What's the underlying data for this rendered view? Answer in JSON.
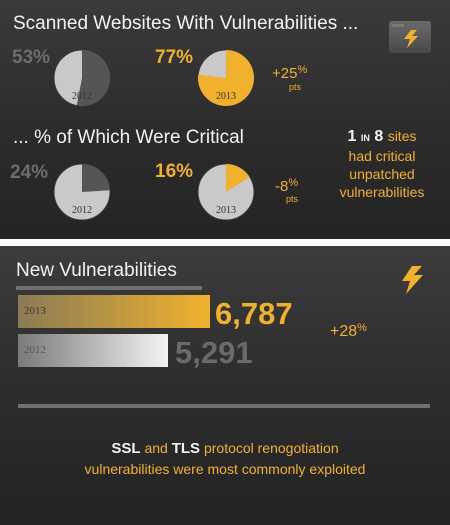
{
  "top": {
    "heading1": "Scanned Websites With Vulnerabilities ...",
    "heading2": "... % of Which Were Critical",
    "scanned": {
      "pct_2012": "53%",
      "pct_2013": "77%",
      "delta": "+25",
      "delta_unit": "%",
      "delta_sub": "pts"
    },
    "critical": {
      "pct_2012": "24%",
      "pct_2013": "16%",
      "delta": "-8",
      "delta_unit": "%",
      "delta_sub": "pts"
    },
    "year_2012": "2012",
    "year_2013": "2013",
    "ratio": {
      "one": "1",
      "in": "IN",
      "eight": "8",
      "sites": "sites",
      "line2": "had critical",
      "line3": "unpatched",
      "line4": "vulnerabilities"
    },
    "logo_icon": "bolt-icon"
  },
  "bottom": {
    "heading": "New Vulnerabilities",
    "growth": "+28",
    "growth_unit": "%",
    "note_ssl": "SSL",
    "note_and": "and",
    "note_tls": "TLS",
    "note_rest1": "protocol renogotiation",
    "note_line2": "vulnerabilities were most commonly exploited",
    "logo_icon": "bolt-icon"
  },
  "colors": {
    "gold": "#f2b12d",
    "gray": "#6d6d6d",
    "pie_fill": "#c9c9c9",
    "pie_dark": "#555555"
  },
  "chart_data": [
    {
      "type": "pie",
      "title": "Scanned Websites With Vulnerabilities ...",
      "series": [
        {
          "name": "2012",
          "values": [
            53
          ]
        },
        {
          "name": "2013",
          "values": [
            77
          ]
        }
      ]
    },
    {
      "type": "pie",
      "title": "... % of Which Were Critical",
      "series": [
        {
          "name": "2012",
          "values": [
            24
          ]
        },
        {
          "name": "2013",
          "values": [
            16
          ]
        }
      ]
    },
    {
      "type": "bar",
      "title": "New Vulnerabilities",
      "categories": [
        "2013",
        "2012"
      ],
      "values": [
        6787,
        5291
      ],
      "labels": [
        "6,787",
        "5,291"
      ]
    }
  ]
}
